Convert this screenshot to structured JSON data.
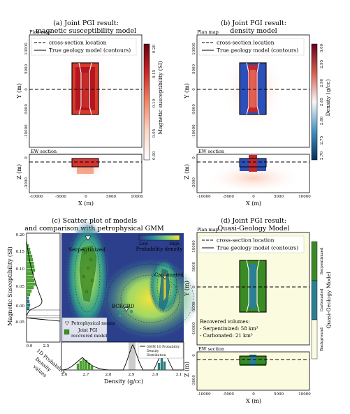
{
  "panels": {
    "a": {
      "title_line1": "(a) Joint PGI result:",
      "title_line2": "magnetic susceptibility model",
      "plan_label": "Plan map",
      "section_label": "EW section",
      "legend": [
        "cross-section location",
        "True geology model (contours)"
      ],
      "colorbar_label": "Magnetic susceptibility (SI)",
      "colorbar_ticks": [
        "0.00",
        "0.05",
        "0.10",
        "0.15",
        "0.20"
      ],
      "colormap": [
        "#ffffff",
        "#fbd0c0",
        "#ef7a5e",
        "#c72027",
        "#67000d"
      ]
    },
    "b": {
      "title_line1": "(b) Joint PGI result:",
      "title_line2": "density model",
      "plan_label": "Plan map",
      "section_label": "EW section",
      "legend": [
        "cross-section location",
        "True geology model (contours)"
      ],
      "colorbar_label": "Density (g/cc)",
      "colorbar_ticks": [
        "2.70",
        "2.75",
        "2.80",
        "2.85",
        "2.90",
        "2.95",
        "3.00"
      ],
      "colormap": [
        "#053061",
        "#4393c3",
        "#f7f7f7",
        "#d6604d",
        "#67001f"
      ]
    },
    "c": {
      "title_line1": "(c) Scatter plot of models",
      "title_line2": "and comparison with petrophysical GMM",
      "ylabel": "Magnetic Susceptibility (SI)",
      "xlabel": "Density (g/cc)",
      "pdf_label": [
        "1D Probability",
        "Density",
        "values"
      ],
      "y_ticks": [
        "0.20",
        "0.15",
        "0.10",
        "0.05",
        "0.00",
        "-0.05"
      ],
      "x_ticks": [
        "2.6",
        "2.7",
        "2.8",
        "2.9",
        "3.0",
        "3.1"
      ],
      "pdf_ticks": [
        "0.0",
        "2.5"
      ],
      "unit_labels": [
        "Serpentinized",
        "Carbonated",
        "BCKGRD"
      ],
      "pd_low": "Low",
      "pd_label": "Probability density",
      "pd_high": "High",
      "legend": [
        "Petrophysical means",
        "Joint PGI",
        "recovered model"
      ],
      "inset_legend": [
        "GMM 1D Probability",
        "Density",
        "Distribution"
      ]
    },
    "d": {
      "title_line1": "(d) Joint PGI result:",
      "title_line2": "Quasi-Geology Model",
      "plan_label": "Plan map",
      "section_label": "EW section",
      "legend": [
        "cross-section location",
        "True geology model (contours)"
      ],
      "recovered": [
        "Recovered volumes:",
        "- Serpentinized: 58 km³",
        "- Carbonated: 21 km³"
      ],
      "colorbar_label": "Quasi-Geology Model",
      "colorbar_units": [
        "Serpentinized",
        "Carbonated",
        "Background"
      ],
      "colors": {
        "serpentinized": "#3a8a26",
        "carbonated": "#2a7f92",
        "background": "#fbfbe0"
      }
    }
  },
  "axes": {
    "plan_y_ticks": [
      "10000",
      "5000",
      "0",
      "-5000",
      "-10000"
    ],
    "section_y_ticks": [
      "0",
      "-3000"
    ],
    "x_ticks": [
      "-10000",
      "-5000",
      "0",
      "5000",
      "10000"
    ],
    "ylabel_plan": "Y (m)",
    "ylabel_section": "Z (m)",
    "xlabel": "X (m)"
  }
}
